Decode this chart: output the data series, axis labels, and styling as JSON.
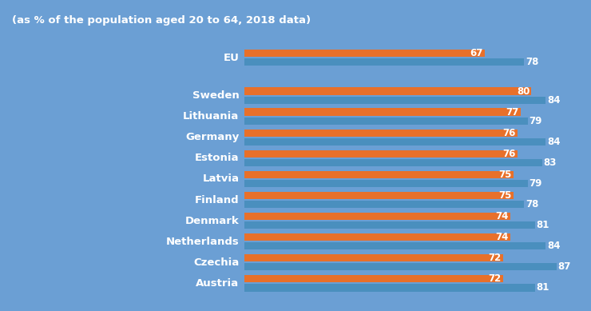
{
  "subtitle": "(as % of the population aged 20 to 64, 2018 data)",
  "background_color": "#6b9fd4",
  "bar_color_women": "#e8702a",
  "bar_color_men": "#4a8fbe",
  "text_color": "#ffffff",
  "countries": [
    "EU",
    "Sweden",
    "Lithuania",
    "Germany",
    "Estonia",
    "Latvia",
    "Finland",
    "Denmark",
    "Netherlands",
    "Czechia",
    "Austria"
  ],
  "women_values": [
    67,
    80,
    77,
    76,
    76,
    75,
    75,
    74,
    74,
    72,
    72
  ],
  "men_values": [
    78,
    84,
    79,
    84,
    83,
    79,
    78,
    81,
    84,
    87,
    81
  ],
  "xlim_max": 90,
  "bar_height": 0.3,
  "subtitle_fontsize": 9.5,
  "value_fontsize": 8.5,
  "country_fontsize": 9.5
}
